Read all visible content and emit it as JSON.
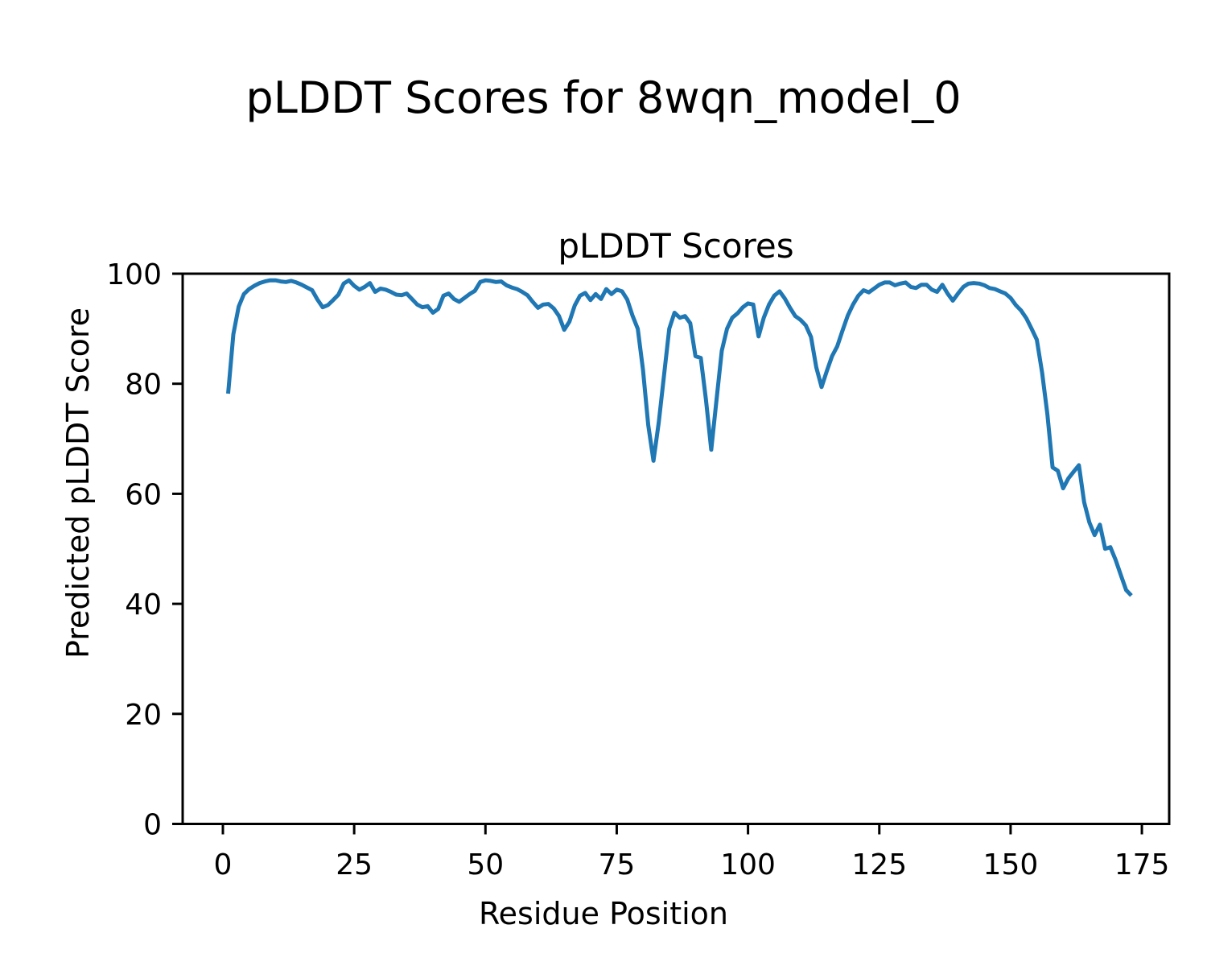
{
  "figure_title": "pLDDT Scores for 8wqn_model_0",
  "chart_data": {
    "type": "line",
    "title": "pLDDT Scores",
    "xlabel": "Residue Position",
    "ylabel": "Predicted pLDDT Score",
    "xticks": [
      0,
      25,
      50,
      75,
      100,
      125,
      150,
      175
    ],
    "yticks": [
      0,
      20,
      40,
      60,
      80,
      100
    ],
    "xlim": [
      -7.66,
      180.2
    ],
    "ylim": [
      0,
      100
    ],
    "grid": false,
    "legend": "none",
    "line_color": "#1f77b4",
    "line_width": 5,
    "series_name": "pLDDT",
    "x": [
      1,
      2,
      3,
      4,
      5,
      6,
      7,
      8,
      9,
      10,
      11,
      12,
      13,
      14,
      15,
      16,
      17,
      18,
      19,
      20,
      21,
      22,
      23,
      24,
      25,
      26,
      27,
      28,
      29,
      30,
      31,
      32,
      33,
      34,
      35,
      36,
      37,
      38,
      39,
      40,
      41,
      42,
      43,
      44,
      45,
      46,
      47,
      48,
      49,
      50,
      51,
      52,
      53,
      54,
      55,
      56,
      57,
      58,
      59,
      60,
      61,
      62,
      63,
      64,
      65,
      66,
      67,
      68,
      69,
      70,
      71,
      72,
      73,
      74,
      75,
      76,
      77,
      78,
      79,
      80,
      81,
      82,
      83,
      84,
      85,
      86,
      87,
      88,
      89,
      90,
      91,
      92,
      93,
      94,
      95,
      96,
      97,
      98,
      99,
      100,
      101,
      102,
      103,
      104,
      105,
      106,
      107,
      108,
      109,
      110,
      111,
      112,
      113,
      114,
      115,
      116,
      117,
      118,
      119,
      120,
      121,
      122,
      123,
      124,
      125,
      126,
      127,
      128,
      129,
      130,
      131,
      132,
      133,
      134,
      135,
      136,
      137,
      138,
      139,
      140,
      141,
      142,
      143,
      144,
      145,
      146,
      147,
      148,
      149,
      150,
      151,
      152,
      153,
      154,
      155,
      156,
      157,
      158,
      159,
      160,
      161,
      162,
      163,
      164,
      165,
      166,
      167,
      168,
      169,
      170,
      171,
      172,
      173
    ],
    "y": [
      78.2,
      89.0,
      94.0,
      96.3,
      97.2,
      97.8,
      98.3,
      98.6,
      98.8,
      98.8,
      98.6,
      98.5,
      98.7,
      98.4,
      98.0,
      97.5,
      97.0,
      95.3,
      93.9,
      94.3,
      95.2,
      96.2,
      98.2,
      98.8,
      97.8,
      97.1,
      97.6,
      98.3,
      96.7,
      97.3,
      97.1,
      96.7,
      96.2,
      96.1,
      96.4,
      95.4,
      94.4,
      93.9,
      94.1,
      92.9,
      93.6,
      96.0,
      96.4,
      95.4,
      94.9,
      95.6,
      96.3,
      96.9,
      98.5,
      98.8,
      98.7,
      98.5,
      98.6,
      97.9,
      97.5,
      97.2,
      96.7,
      96.1,
      94.9,
      93.8,
      94.4,
      94.5,
      93.7,
      92.3,
      89.8,
      91.3,
      94.2,
      96.0,
      96.5,
      95.2,
      96.3,
      95.4,
      97.2,
      96.3,
      97.1,
      96.8,
      95.3,
      92.4,
      90.0,
      82.5,
      72.5,
      66.0,
      73.0,
      81.5,
      90.0,
      92.9,
      92.0,
      92.3,
      91.0,
      85.0,
      84.7,
      77.0,
      68.0,
      77.0,
      86.0,
      90.0,
      92.0,
      92.8,
      93.9,
      94.6,
      94.4,
      88.6,
      92.0,
      94.4,
      96.0,
      96.8,
      95.5,
      93.8,
      92.3,
      91.6,
      90.6,
      88.5,
      83.0,
      79.4,
      82.3,
      85.0,
      86.8,
      89.7,
      92.4,
      94.4,
      96.0,
      97.0,
      96.6,
      97.3,
      98.0,
      98.4,
      98.4,
      97.9,
      98.2,
      98.4,
      97.6,
      97.4,
      98.0,
      98.0,
      97.1,
      96.7,
      98.0,
      96.4,
      95.1,
      96.4,
      97.6,
      98.2,
      98.3,
      98.2,
      97.9,
      97.4,
      97.2,
      96.8,
      96.4,
      95.6,
      94.3,
      93.3,
      91.9,
      90.0,
      88.0,
      82.0,
      74.5,
      64.8,
      64.2,
      61.0,
      62.8,
      64.0,
      65.2,
      58.5,
      54.8,
      52.5,
      54.4,
      50.0,
      50.3,
      48.0,
      45.2,
      42.5,
      41.5
    ]
  }
}
